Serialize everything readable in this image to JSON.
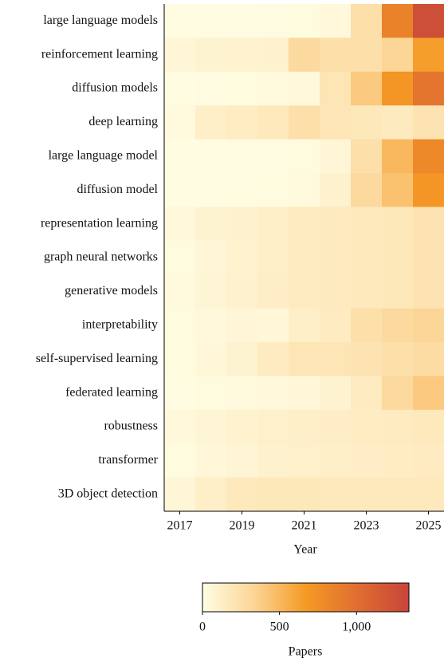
{
  "chart_data": {
    "type": "heatmap",
    "x_label": "Year",
    "x": [
      2017,
      2018,
      2019,
      2020,
      2021,
      2022,
      2023,
      2024,
      2025
    ],
    "xticks": [
      2017,
      2019,
      2021,
      2023,
      2025
    ],
    "categories": [
      "large language models",
      "reinforcement learning",
      "diffusion models",
      "deep learning",
      "large language model",
      "diffusion model",
      "representation learning",
      "graph neural networks",
      "generative models",
      "interpretability",
      "self-supervised learning",
      "federated learning",
      "robustness",
      "transformer",
      "3D object detection"
    ],
    "z": [
      [
        10,
        10,
        10,
        15,
        20,
        40,
        250,
        850,
        1250
      ],
      [
        60,
        80,
        90,
        100,
        300,
        250,
        250,
        330,
        650
      ],
      [
        10,
        15,
        20,
        25,
        40,
        200,
        400,
        700,
        950
      ],
      [
        30,
        120,
        140,
        170,
        250,
        200,
        180,
        160,
        220
      ],
      [
        10,
        10,
        15,
        15,
        20,
        60,
        250,
        500,
        800
      ],
      [
        10,
        10,
        15,
        20,
        30,
        100,
        300,
        450,
        700
      ],
      [
        40,
        80,
        100,
        120,
        150,
        160,
        170,
        180,
        220
      ],
      [
        20,
        60,
        90,
        120,
        150,
        160,
        170,
        180,
        220
      ],
      [
        30,
        70,
        100,
        130,
        150,
        160,
        170,
        180,
        220
      ],
      [
        20,
        40,
        60,
        50,
        120,
        150,
        250,
        300,
        330
      ],
      [
        20,
        50,
        80,
        150,
        200,
        200,
        220,
        250,
        280
      ],
      [
        10,
        20,
        30,
        40,
        50,
        80,
        150,
        300,
        400
      ],
      [
        40,
        70,
        90,
        110,
        120,
        130,
        140,
        150,
        170
      ],
      [
        20,
        50,
        70,
        100,
        110,
        120,
        130,
        140,
        150
      ],
      [
        60,
        120,
        170,
        180,
        180,
        170,
        170,
        170,
        170
      ]
    ],
    "colorbar_label": "Papers",
    "zlim": [
      0,
      1340
    ],
    "zticks": [
      0,
      500,
      {
        "value": 1000,
        "label": "1,000"
      }
    ],
    "colors": [
      "#fffde4",
      "#fcd596",
      "#f59a24",
      "#e06e30",
      "#c8443a"
    ]
  }
}
